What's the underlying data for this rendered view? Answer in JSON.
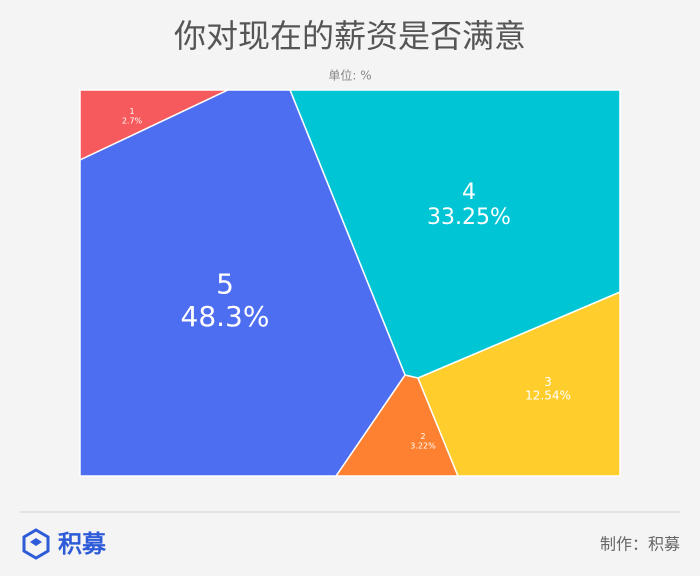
{
  "chart_data": {
    "type": "treemap",
    "title": "你对现在的薪资是否满意",
    "subtitle": "单位: %",
    "categories": [
      "1",
      "2",
      "3",
      "4",
      "5"
    ],
    "values": [
      2.7,
      3.22,
      12.54,
      33.25,
      48.3
    ],
    "value_labels": [
      "2.7%",
      "3.22%",
      "12.54%",
      "33.25%",
      "48.3%"
    ],
    "colors": [
      "#f75a5c",
      "#fd8130",
      "#ffcd2c",
      "#00c5d4",
      "#4e6ef2"
    ]
  },
  "footer": {
    "logo": "积募",
    "credit": "制作：积募"
  }
}
